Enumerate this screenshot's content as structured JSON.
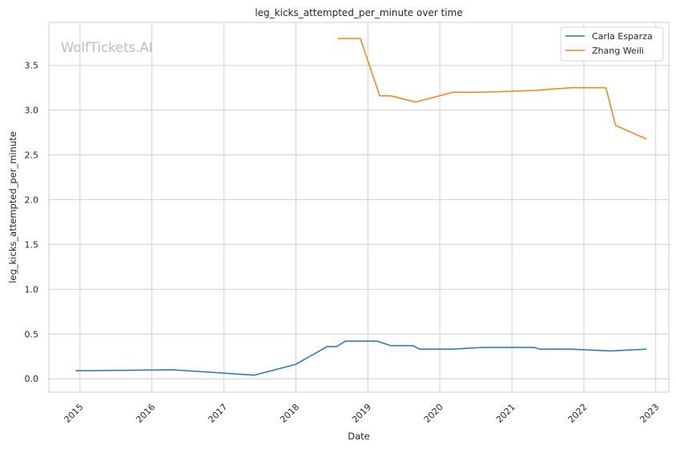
{
  "chart_data": {
    "type": "line",
    "title": "leg_kicks_attempted_per_minute over time",
    "xlabel": "Date",
    "ylabel": "leg_kicks_attempted_per_minute",
    "watermark": "WolfTickets.AI",
    "x_axis_type": "date",
    "xlim": [
      "2014-07-27",
      "2023-03-08"
    ],
    "ylim": [
      -0.15,
      3.98
    ],
    "x_ticks": [
      "2015-01-01",
      "2016-01-01",
      "2017-01-01",
      "2018-01-01",
      "2019-01-01",
      "2020-01-01",
      "2021-01-01",
      "2022-01-01",
      "2023-01-01"
    ],
    "x_tick_labels": [
      "2015",
      "2016",
      "2017",
      "2018",
      "2019",
      "2020",
      "2021",
      "2022",
      "2023"
    ],
    "y_ticks": [
      0.0,
      0.5,
      1.0,
      1.5,
      2.0,
      2.5,
      3.0,
      3.5
    ],
    "y_tick_labels": [
      "0.0",
      "0.5",
      "1.0",
      "1.5",
      "2.0",
      "2.5",
      "3.0",
      "3.5"
    ],
    "grid": true,
    "legend_position": "top-right",
    "series": [
      {
        "name": "Carla Esparza",
        "color": "#1f77b4",
        "x": [
          "2014-12-12",
          "2015-03-01",
          "2016-04-16",
          "2017-06-03",
          "2017-12-30",
          "2018-06-09",
          "2018-07-28",
          "2018-09-08",
          "2019-02-17",
          "2019-04-27",
          "2019-08-17",
          "2019-09-21",
          "2020-03-07",
          "2020-08-01",
          "2021-04-24",
          "2021-05-22",
          "2021-10-30",
          "2022-05-14",
          "2022-11-12"
        ],
        "y": [
          0.09,
          0.09,
          0.1,
          0.04,
          0.16,
          0.36,
          0.36,
          0.42,
          0.42,
          0.37,
          0.37,
          0.33,
          0.33,
          0.35,
          0.35,
          0.33,
          0.33,
          0.31,
          0.33
        ]
      },
      {
        "name": "Zhang Weili",
        "color": "#ff7f0e",
        "x": [
          "2018-08-04",
          "2018-11-24",
          "2019-03-02",
          "2019-04-27",
          "2019-08-31",
          "2020-03-07",
          "2020-08-01",
          "2021-04-24",
          "2021-10-30",
          "2022-04-23",
          "2022-06-11",
          "2022-11-12"
        ],
        "y": [
          3.8,
          3.8,
          3.16,
          3.16,
          3.09,
          3.2,
          3.2,
          3.22,
          3.25,
          3.25,
          2.83,
          2.68
        ]
      }
    ]
  }
}
